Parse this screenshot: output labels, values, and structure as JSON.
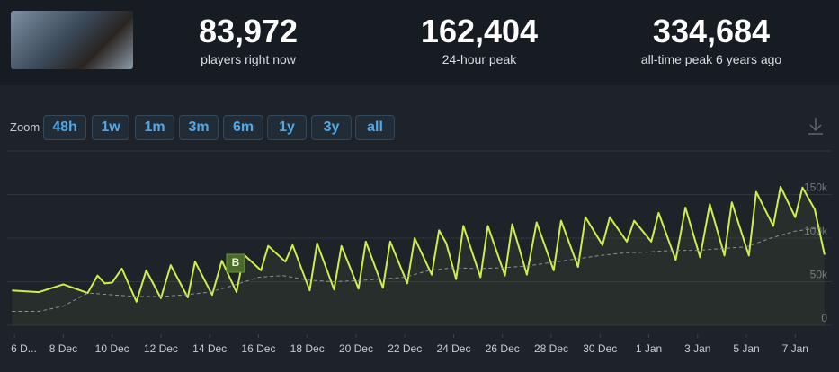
{
  "header": {
    "stats": [
      {
        "value": "83,972",
        "label": "players right now"
      },
      {
        "value": "162,404",
        "label": "24-hour peak"
      },
      {
        "value": "334,684",
        "label": "all-time peak 6 years ago"
      }
    ]
  },
  "zoom": {
    "label": "Zoom",
    "buttons": [
      "48h",
      "1w",
      "1m",
      "3m",
      "6m",
      "1y",
      "3y",
      "all"
    ]
  },
  "chart_data": {
    "type": "line",
    "annotation": "B",
    "xlim": [
      -0.3,
      33.5
    ],
    "xticks": [
      {
        "value": 0,
        "label": "6 D..."
      },
      {
        "value": 2,
        "label": "8 Dec"
      },
      {
        "value": 4,
        "label": "10 Dec"
      },
      {
        "value": 6,
        "label": "12 Dec"
      },
      {
        "value": 8,
        "label": "14 Dec"
      },
      {
        "value": 10,
        "label": "16 Dec"
      },
      {
        "value": 12,
        "label": "18 Dec"
      },
      {
        "value": 14,
        "label": "20 Dec"
      },
      {
        "value": 16,
        "label": "22 Dec"
      },
      {
        "value": 18,
        "label": "24 Dec"
      },
      {
        "value": 20,
        "label": "26 Dec"
      },
      {
        "value": 22,
        "label": "28 Dec"
      },
      {
        "value": 24,
        "label": "30 Dec"
      },
      {
        "value": 26,
        "label": "1 Jan"
      },
      {
        "value": 28,
        "label": "3 Jan"
      },
      {
        "value": 30,
        "label": "5 Jan"
      },
      {
        "value": 32,
        "label": "7 Jan"
      }
    ],
    "ylim": [
      0,
      200000
    ],
    "yticks": [
      {
        "value": 0,
        "label": "0"
      },
      {
        "value": 50000,
        "label": "50k"
      },
      {
        "value": 100000,
        "label": "100k"
      },
      {
        "value": 150000,
        "label": "150k"
      }
    ],
    "grid": true,
    "series": [
      {
        "color": "#c9f04d",
        "dashed": false,
        "x": [
          -0.1,
          1.0,
          2.0,
          3.0,
          3.4,
          3.7,
          4.0,
          4.4,
          5.0,
          5.4,
          6.0,
          6.4,
          7.1,
          7.4,
          8.1,
          8.5,
          9.1,
          9.4,
          10.1,
          10.4,
          11.1,
          11.4,
          12.1,
          12.4,
          13.1,
          13.4,
          14.1,
          14.4,
          15.1,
          15.4,
          16.1,
          16.4,
          17.1,
          17.4,
          17.7,
          18.1,
          18.4,
          19.1,
          19.4,
          20.1,
          20.4,
          21.0,
          21.4,
          22.1,
          22.4,
          23.1,
          23.4,
          24.1,
          24.4,
          25.1,
          25.4,
          26.1,
          26.4,
          27.1,
          27.5,
          28.1,
          28.5,
          29.1,
          29.4,
          30.1,
          30.4,
          31.1,
          31.4,
          32.0,
          32.3,
          32.8,
          33.2
        ],
        "values": [
          40000,
          38000,
          47000,
          37000,
          57000,
          48000,
          49000,
          65000,
          27000,
          63000,
          31000,
          69000,
          32000,
          73000,
          35000,
          74000,
          38000,
          81000,
          63000,
          91000,
          73000,
          92000,
          40000,
          94000,
          41000,
          91000,
          42000,
          96000,
          43000,
          96000,
          48000,
          100000,
          58000,
          109000,
          94000,
          53000,
          114000,
          55000,
          114000,
          57000,
          116000,
          58000,
          118000,
          63000,
          120000,
          67000,
          124000,
          92000,
          124000,
          96000,
          120000,
          96000,
          129000,
          75000,
          135000,
          78000,
          139000,
          80000,
          141000,
          80000,
          153000,
          114000,
          159000,
          124000,
          158000,
          133000,
          81000
        ]
      },
      {
        "color": "#8a9096",
        "dashed": true,
        "x": [
          -0.1,
          1,
          2,
          3,
          4,
          5,
          6,
          7,
          8,
          9,
          10,
          11,
          12,
          13,
          14,
          15,
          16,
          17,
          18,
          19,
          20,
          21,
          22,
          23,
          24,
          25,
          26,
          27,
          28,
          29,
          30,
          31,
          32,
          33
        ],
        "values": [
          16000,
          16000,
          22000,
          37000,
          35000,
          33000,
          33000,
          35000,
          38000,
          46000,
          55000,
          57000,
          52000,
          50000,
          51000,
          53000,
          55000,
          63000,
          66000,
          65000,
          66000,
          68000,
          72000,
          76000,
          80000,
          83000,
          84000,
          86000,
          86000,
          88000,
          90000,
          100000,
          108000,
          112000
        ]
      }
    ]
  }
}
